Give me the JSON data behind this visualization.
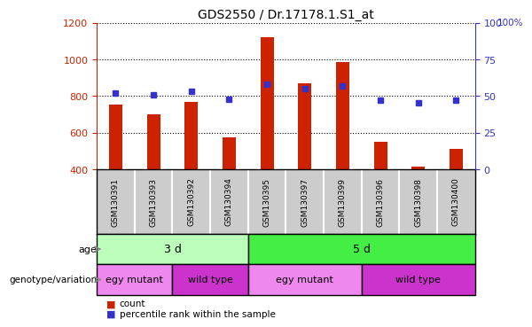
{
  "title": "GDS2550 / Dr.17178.1.S1_at",
  "samples": [
    "GSM130391",
    "GSM130393",
    "GSM130392",
    "GSM130394",
    "GSM130395",
    "GSM130397",
    "GSM130399",
    "GSM130396",
    "GSM130398",
    "GSM130400"
  ],
  "counts": [
    755,
    700,
    765,
    575,
    1120,
    870,
    985,
    550,
    415,
    510
  ],
  "percentiles": [
    52,
    51,
    53,
    48,
    58,
    55,
    57,
    47,
    45,
    47
  ],
  "ylim_left": [
    400,
    1200
  ],
  "ylim_right": [
    0,
    100
  ],
  "yticks_left": [
    400,
    600,
    800,
    1000,
    1200
  ],
  "yticks_right": [
    0,
    25,
    50,
    75,
    100
  ],
  "bar_color": "#cc2200",
  "dot_color": "#3333cc",
  "age_groups": [
    {
      "label": "3 d",
      "start": 0,
      "end": 4,
      "color": "#bbffbb"
    },
    {
      "label": "5 d",
      "start": 4,
      "end": 10,
      "color": "#44ee44"
    }
  ],
  "genotype_groups": [
    {
      "label": "egy mutant",
      "start": 0,
      "end": 2,
      "color": "#ee88ee"
    },
    {
      "label": "wild type",
      "start": 2,
      "end": 4,
      "color": "#cc33cc"
    },
    {
      "label": "egy mutant",
      "start": 4,
      "end": 7,
      "color": "#ee88ee"
    },
    {
      "label": "wild type",
      "start": 7,
      "end": 10,
      "color": "#cc33cc"
    }
  ],
  "legend_count_color": "#cc2200",
  "legend_dot_color": "#3333cc",
  "age_label": "age",
  "genotype_label": "genotype/variation",
  "gsm_bg_color": "#cccccc",
  "bar_width": 0.35,
  "dot_size": 5,
  "grid_color": "black",
  "grid_style": "dotted"
}
